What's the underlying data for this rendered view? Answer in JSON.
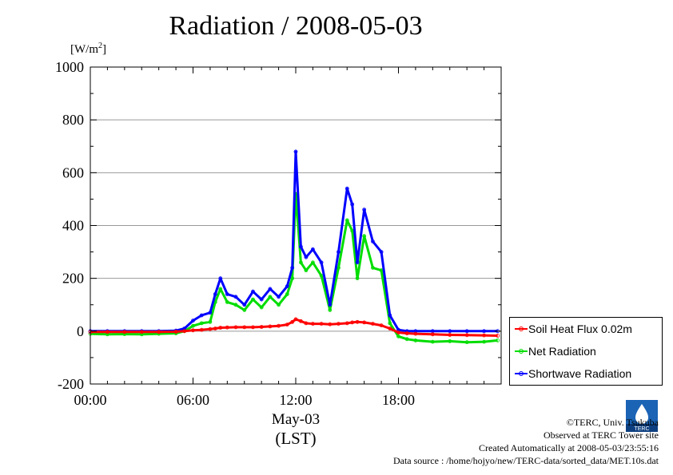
{
  "page": {
    "title": "Radiation / 2008-05-03",
    "unit_label": "[W/m",
    "unit_sup": "2",
    "unit_close": "]",
    "x_date_label": "May-03",
    "x_tz_label": "(LST)",
    "credits": [
      "©TERC, Univ. Tsukuba",
      "Observed at TERC Tower site",
      "Created Automatically at 2008-05-03/23:55:16",
      "Data source : /home/hojyo/new/TERC-data/sorted_data/MET.10s.dat"
    ],
    "logo_text": "TERC"
  },
  "chart_data": {
    "type": "line",
    "title": "Radiation / 2008-05-03",
    "xlabel": "May-03 (LST)",
    "ylabel": "[W/m2]",
    "x_unit": "hour",
    "xlim": [
      0,
      24
    ],
    "ylim": [
      -200,
      1000
    ],
    "yticks": [
      -200,
      0,
      200,
      400,
      600,
      800,
      1000
    ],
    "ytick_labels": [
      "-200",
      "0",
      "200",
      "400",
      "600",
      "800",
      "1000"
    ],
    "xticks": [
      0,
      6,
      12,
      18
    ],
    "xtick_labels": [
      "00:00",
      "06:00",
      "12:00",
      "18:00"
    ],
    "grid": true,
    "legend_position": "bottom-right outside",
    "x": [
      0,
      1,
      2,
      3,
      4,
      5,
      5.5,
      6,
      6.5,
      7,
      7.3,
      7.6,
      8,
      8.5,
      9,
      9.5,
      10,
      10.5,
      11,
      11.5,
      11.8,
      12,
      12.3,
      12.6,
      13,
      13.5,
      14,
      14.5,
      15,
      15.3,
      15.6,
      16,
      16.5,
      17,
      17.5,
      18,
      18.5,
      19,
      20,
      21,
      22,
      23,
      23.8
    ],
    "series": [
      {
        "name": "Soil Heat Flux 0.02m",
        "color": "#ff0000",
        "values": [
          -3,
          -3,
          -3,
          -3,
          -3,
          -2,
          0,
          3,
          5,
          8,
          10,
          13,
          14,
          15,
          15,
          15,
          16,
          18,
          20,
          25,
          35,
          45,
          38,
          30,
          28,
          28,
          26,
          28,
          30,
          33,
          35,
          33,
          28,
          22,
          10,
          -5,
          -8,
          -10,
          -12,
          -14,
          -15,
          -16,
          -17
        ]
      },
      {
        "name": "Net Radiation",
        "color": "#00dd00",
        "values": [
          -10,
          -12,
          -11,
          -12,
          -10,
          -8,
          0,
          20,
          30,
          35,
          110,
          160,
          110,
          100,
          80,
          120,
          90,
          130,
          100,
          140,
          200,
          520,
          260,
          230,
          260,
          210,
          80,
          240,
          420,
          380,
          200,
          360,
          240,
          230,
          30,
          -20,
          -30,
          -35,
          -40,
          -38,
          -42,
          -40,
          -35
        ]
      },
      {
        "name": "Shortwave Radiation",
        "color": "#0000ff",
        "values": [
          0,
          0,
          0,
          0,
          0,
          2,
          10,
          40,
          60,
          70,
          140,
          200,
          140,
          130,
          100,
          150,
          120,
          160,
          130,
          170,
          240,
          680,
          320,
          280,
          310,
          260,
          100,
          300,
          540,
          480,
          260,
          460,
          340,
          300,
          60,
          5,
          0,
          0,
          0,
          0,
          0,
          0,
          0
        ]
      }
    ]
  },
  "legend": {
    "items": [
      {
        "label": "Soil Heat Flux 0.02m",
        "color": "#ff0000"
      },
      {
        "label": "Net Radiation",
        "color": "#00dd00"
      },
      {
        "label": "Shortwave Radiation",
        "color": "#0000ff"
      }
    ]
  }
}
